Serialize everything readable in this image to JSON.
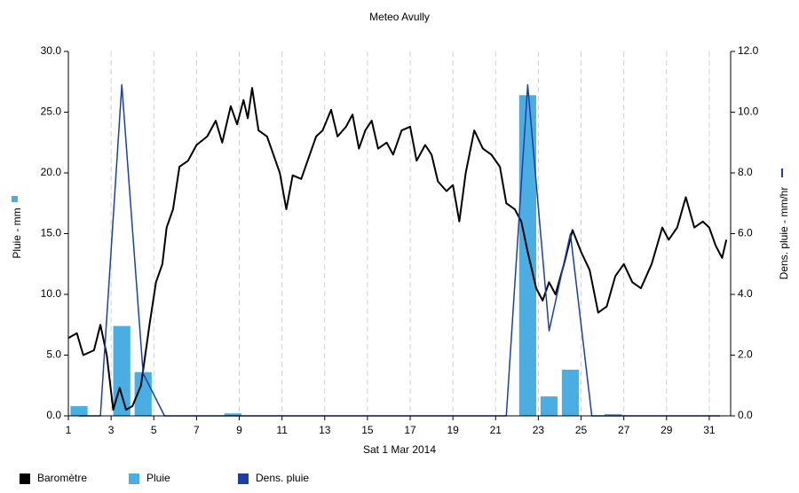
{
  "chart_data": {
    "type": "combo",
    "title": "Meteo  Avully",
    "xlabel": "Sat 1 Mar 2014",
    "ylabel": "Pluie - mm",
    "y2label": "Dens. pluie - mm/hr",
    "xlim": [
      1,
      32
    ],
    "xticks": [
      1,
      3,
      5,
      7,
      9,
      11,
      13,
      15,
      17,
      19,
      21,
      23,
      25,
      27,
      29,
      31
    ],
    "ylim": [
      0,
      30
    ],
    "yticks": [
      {
        "value": 0,
        "label": "0.0"
      },
      {
        "value": 5,
        "label": "5.0"
      },
      {
        "value": 10,
        "label": "10.0"
      },
      {
        "value": 15,
        "label": "15.0"
      },
      {
        "value": 20,
        "label": "20.0"
      },
      {
        "value": 25,
        "label": "25.0"
      },
      {
        "value": 30,
        "label": "30.0"
      }
    ],
    "y2lim": [
      0,
      12
    ],
    "y2ticks": [
      {
        "value": 0,
        "label": "0.0"
      },
      {
        "value": 2,
        "label": "2.0"
      },
      {
        "value": 4,
        "label": "4.0"
      },
      {
        "value": 6,
        "label": "6.0"
      },
      {
        "value": 8,
        "label": "8.0"
      },
      {
        "value": 10,
        "label": "10.0"
      },
      {
        "value": 12,
        "label": "12.0"
      }
    ],
    "grid": true,
    "legend": "bottom",
    "series": [
      {
        "name": "Baromètre",
        "type": "line",
        "color": "#000000",
        "x": [
          1.0,
          1.4,
          1.7,
          2.2,
          2.5,
          2.8,
          3.1,
          3.4,
          3.7,
          4.0,
          4.4,
          4.8,
          5.1,
          5.4,
          5.6,
          5.9,
          6.2,
          6.6,
          7.0,
          7.5,
          7.9,
          8.2,
          8.6,
          8.9,
          9.2,
          9.4,
          9.6,
          9.9,
          10.3,
          10.6,
          10.9,
          11.2,
          11.5,
          11.9,
          12.3,
          12.6,
          12.9,
          13.3,
          13.6,
          14.0,
          14.3,
          14.6,
          14.9,
          15.2,
          15.5,
          15.9,
          16.2,
          16.6,
          17.0,
          17.3,
          17.7,
          18.0,
          18.3,
          18.7,
          19.0,
          19.3,
          19.6,
          20.0,
          20.4,
          20.8,
          21.2,
          21.5,
          21.9,
          22.2,
          22.5,
          22.9,
          23.2,
          23.5,
          23.8,
          24.2,
          24.6,
          25.0,
          25.4,
          25.8,
          26.2,
          26.6,
          27.0,
          27.4,
          27.8,
          28.3,
          28.8,
          29.1,
          29.5,
          29.9,
          30.3,
          30.7,
          31.0,
          31.3,
          31.6,
          31.8
        ],
        "values": [
          6.4,
          6.8,
          5.0,
          5.4,
          7.5,
          5.0,
          0.5,
          2.3,
          0.5,
          0.8,
          2.5,
          7.5,
          11.0,
          12.5,
          15.5,
          17.0,
          20.5,
          21.0,
          22.3,
          23.0,
          24.3,
          22.5,
          25.5,
          24.0,
          26.0,
          24.5,
          27.0,
          23.5,
          23.0,
          21.5,
          20.0,
          17.0,
          19.8,
          19.5,
          21.5,
          23.0,
          23.5,
          25.2,
          23.0,
          23.8,
          24.8,
          22.0,
          23.5,
          24.3,
          22.0,
          22.5,
          21.5,
          23.5,
          23.8,
          21.0,
          22.3,
          21.5,
          19.3,
          18.5,
          19.0,
          16.0,
          20.0,
          23.5,
          22.0,
          21.5,
          20.5,
          17.5,
          17.0,
          16.0,
          13.5,
          10.5,
          9.5,
          11.0,
          10.0,
          12.5,
          15.3,
          13.5,
          12.0,
          8.5,
          9.0,
          11.5,
          12.5,
          11.0,
          10.5,
          12.5,
          15.5,
          14.5,
          15.5,
          18.0,
          15.5,
          16.0,
          15.5,
          14.0,
          13.0,
          14.5
        ]
      },
      {
        "name": "Pluie",
        "type": "bar",
        "color": "#4aaee2",
        "x": [
          1.5,
          3.5,
          4.5,
          8.7,
          22.5,
          23.5,
          24.5,
          26.5
        ],
        "values": [
          0.8,
          7.4,
          3.6,
          0.2,
          26.4,
          1.6,
          3.8,
          0.15
        ]
      },
      {
        "name": "Dens. pluie",
        "type": "line",
        "color": "#1a40a8",
        "axis": "y2",
        "x": [
          1.5,
          2.5,
          3.5,
          4.5,
          5.5,
          21.5,
          22.5,
          23.5,
          24.5,
          25.5,
          31.5
        ],
        "values": [
          0,
          0,
          10.9,
          1.4,
          0,
          0,
          10.9,
          2.8,
          6.0,
          0,
          0
        ]
      }
    ]
  }
}
